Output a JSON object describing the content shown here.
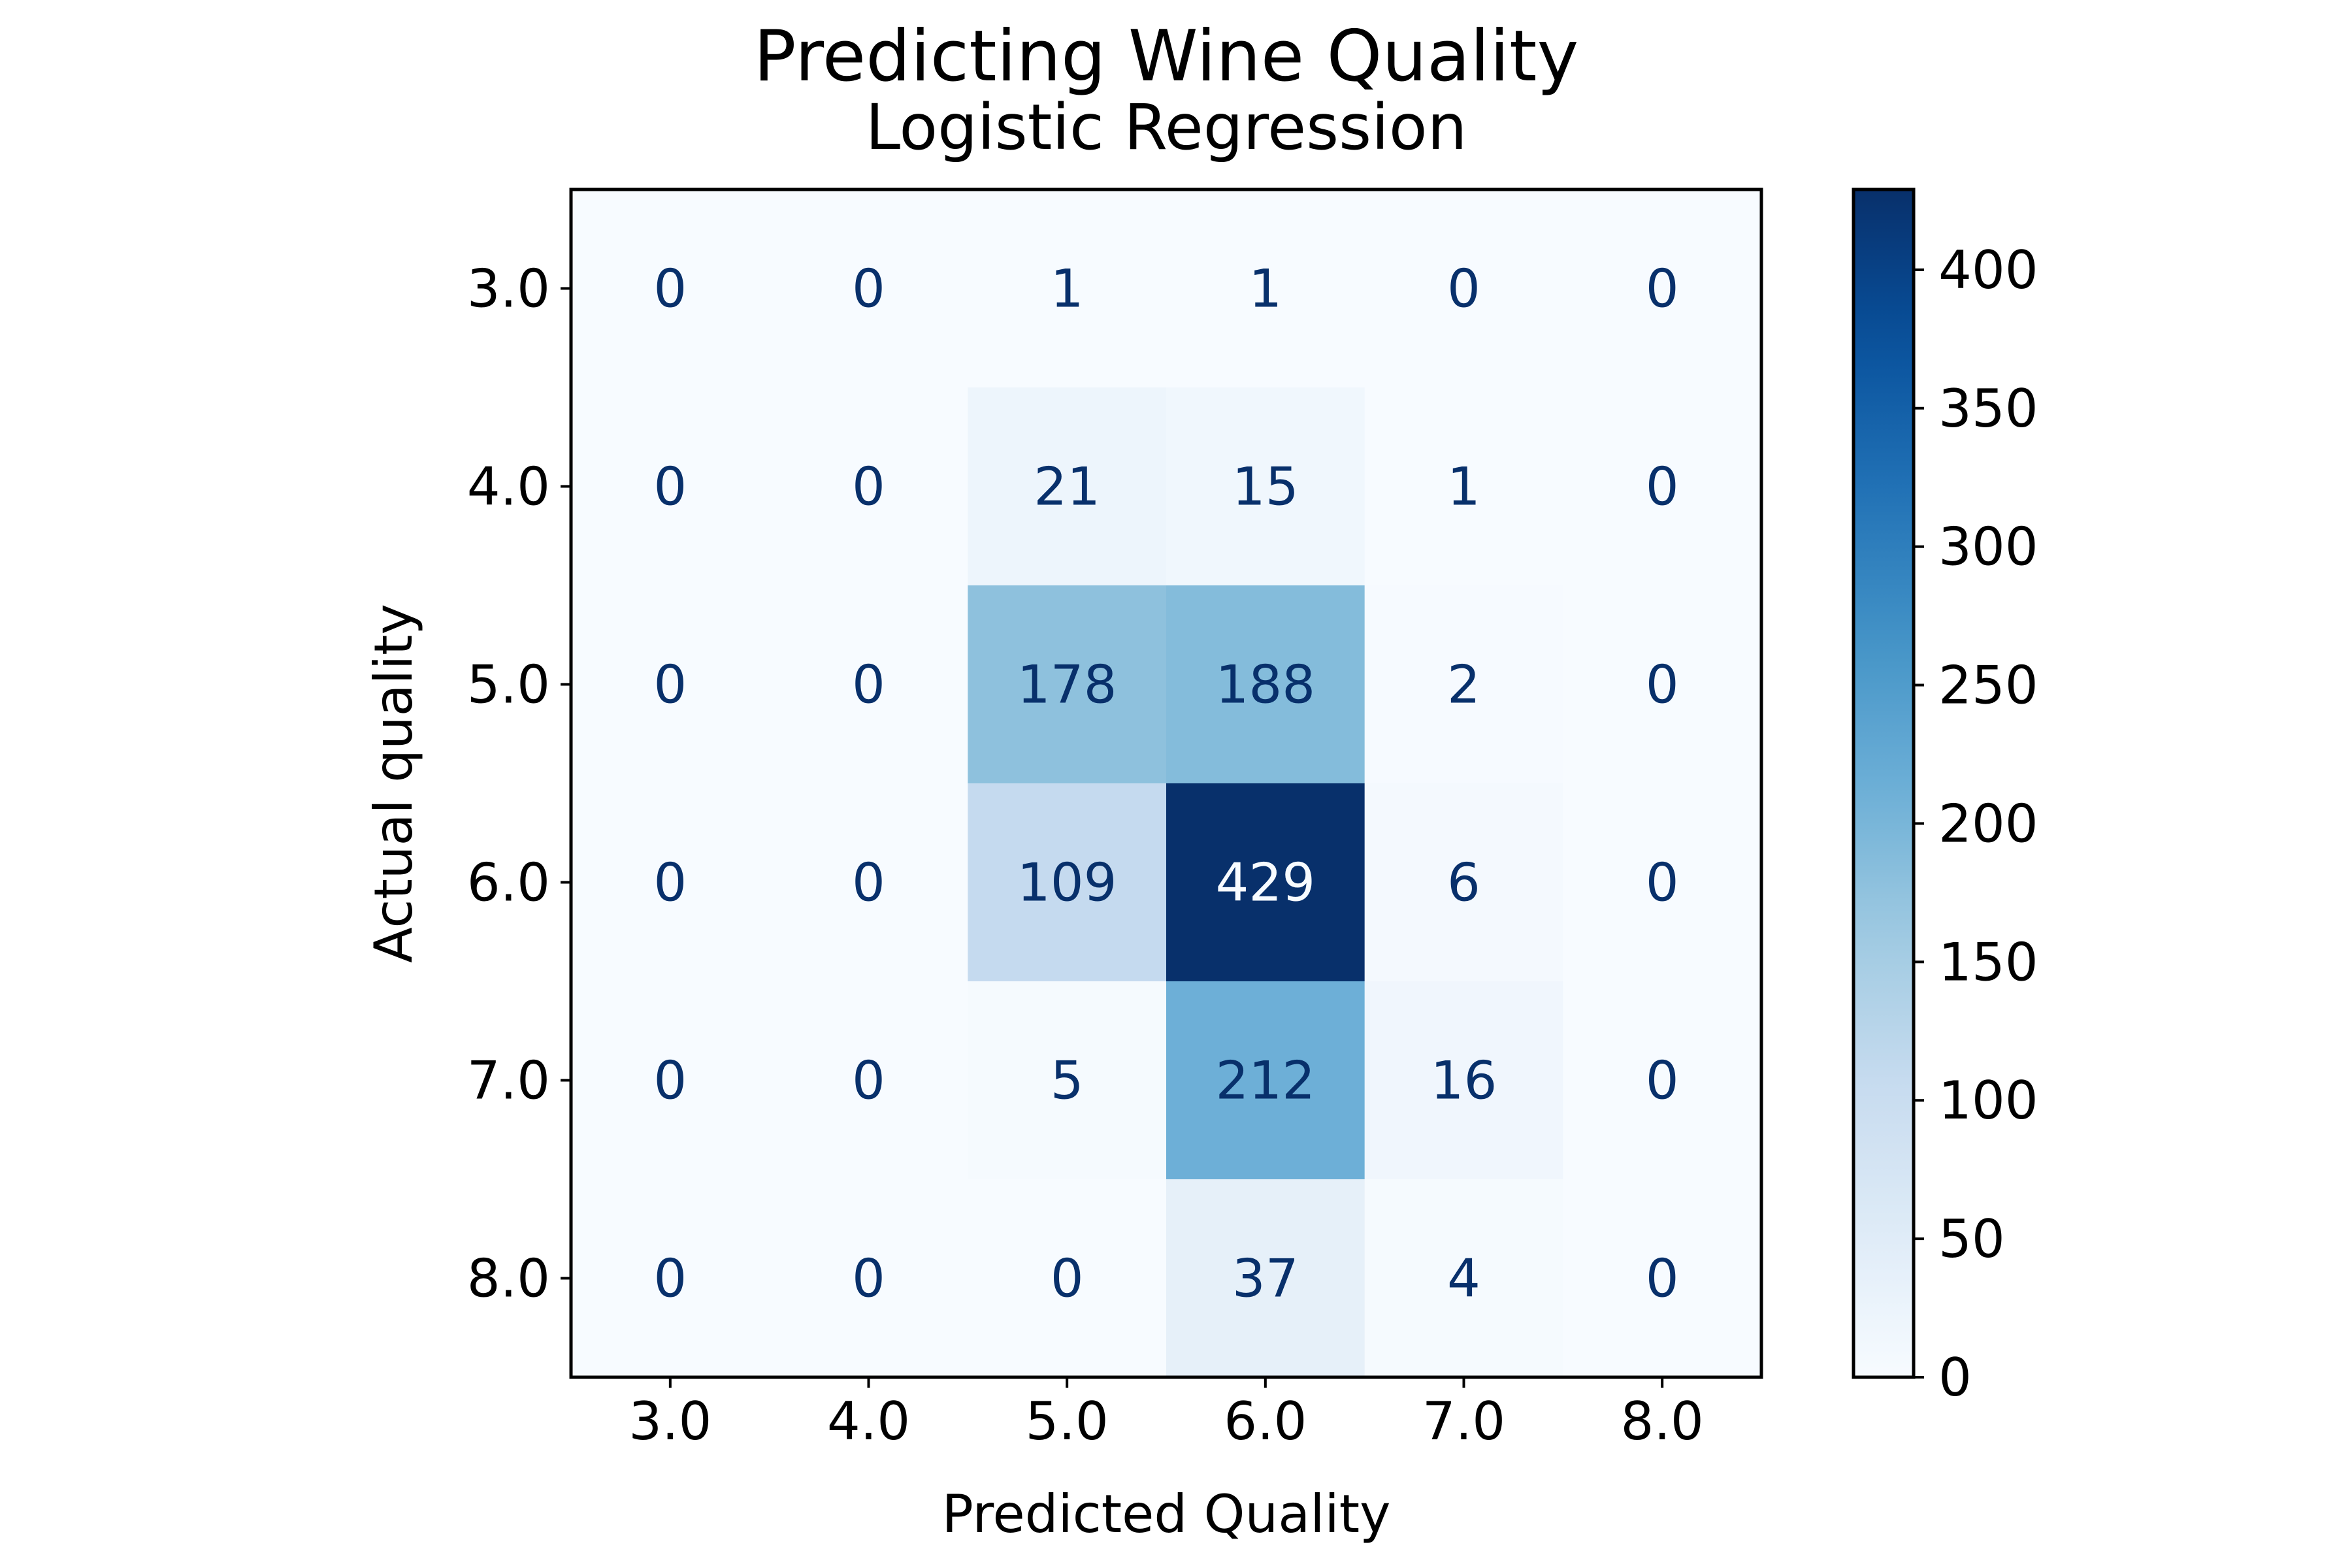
{
  "chart_data": {
    "type": "heatmap",
    "title": "Predicting Wine Quality",
    "subtitle": "Logistic Regression",
    "xlabel": "Predicted Quality",
    "ylabel": "Actual quality",
    "x_categories": [
      "3.0",
      "4.0",
      "5.0",
      "6.0",
      "7.0",
      "8.0"
    ],
    "y_categories": [
      "3.0",
      "4.0",
      "5.0",
      "6.0",
      "7.0",
      "8.0"
    ],
    "matrix": [
      [
        0,
        0,
        1,
        1,
        0,
        0
      ],
      [
        0,
        0,
        21,
        15,
        1,
        0
      ],
      [
        0,
        0,
        178,
        188,
        2,
        0
      ],
      [
        0,
        0,
        109,
        429,
        6,
        0
      ],
      [
        0,
        0,
        5,
        212,
        16,
        0
      ],
      [
        0,
        0,
        0,
        37,
        4,
        0
      ]
    ],
    "colormap": "Blues",
    "color_range": [
      0,
      429
    ],
    "colorbar_ticks": [
      "0",
      "50",
      "100",
      "150",
      "200",
      "250",
      "300",
      "350",
      "400"
    ],
    "colors": {
      "low": "#f7fbff",
      "high": "#08306b",
      "text_dark": "#08306b",
      "text_light": "#f7fbff"
    }
  }
}
